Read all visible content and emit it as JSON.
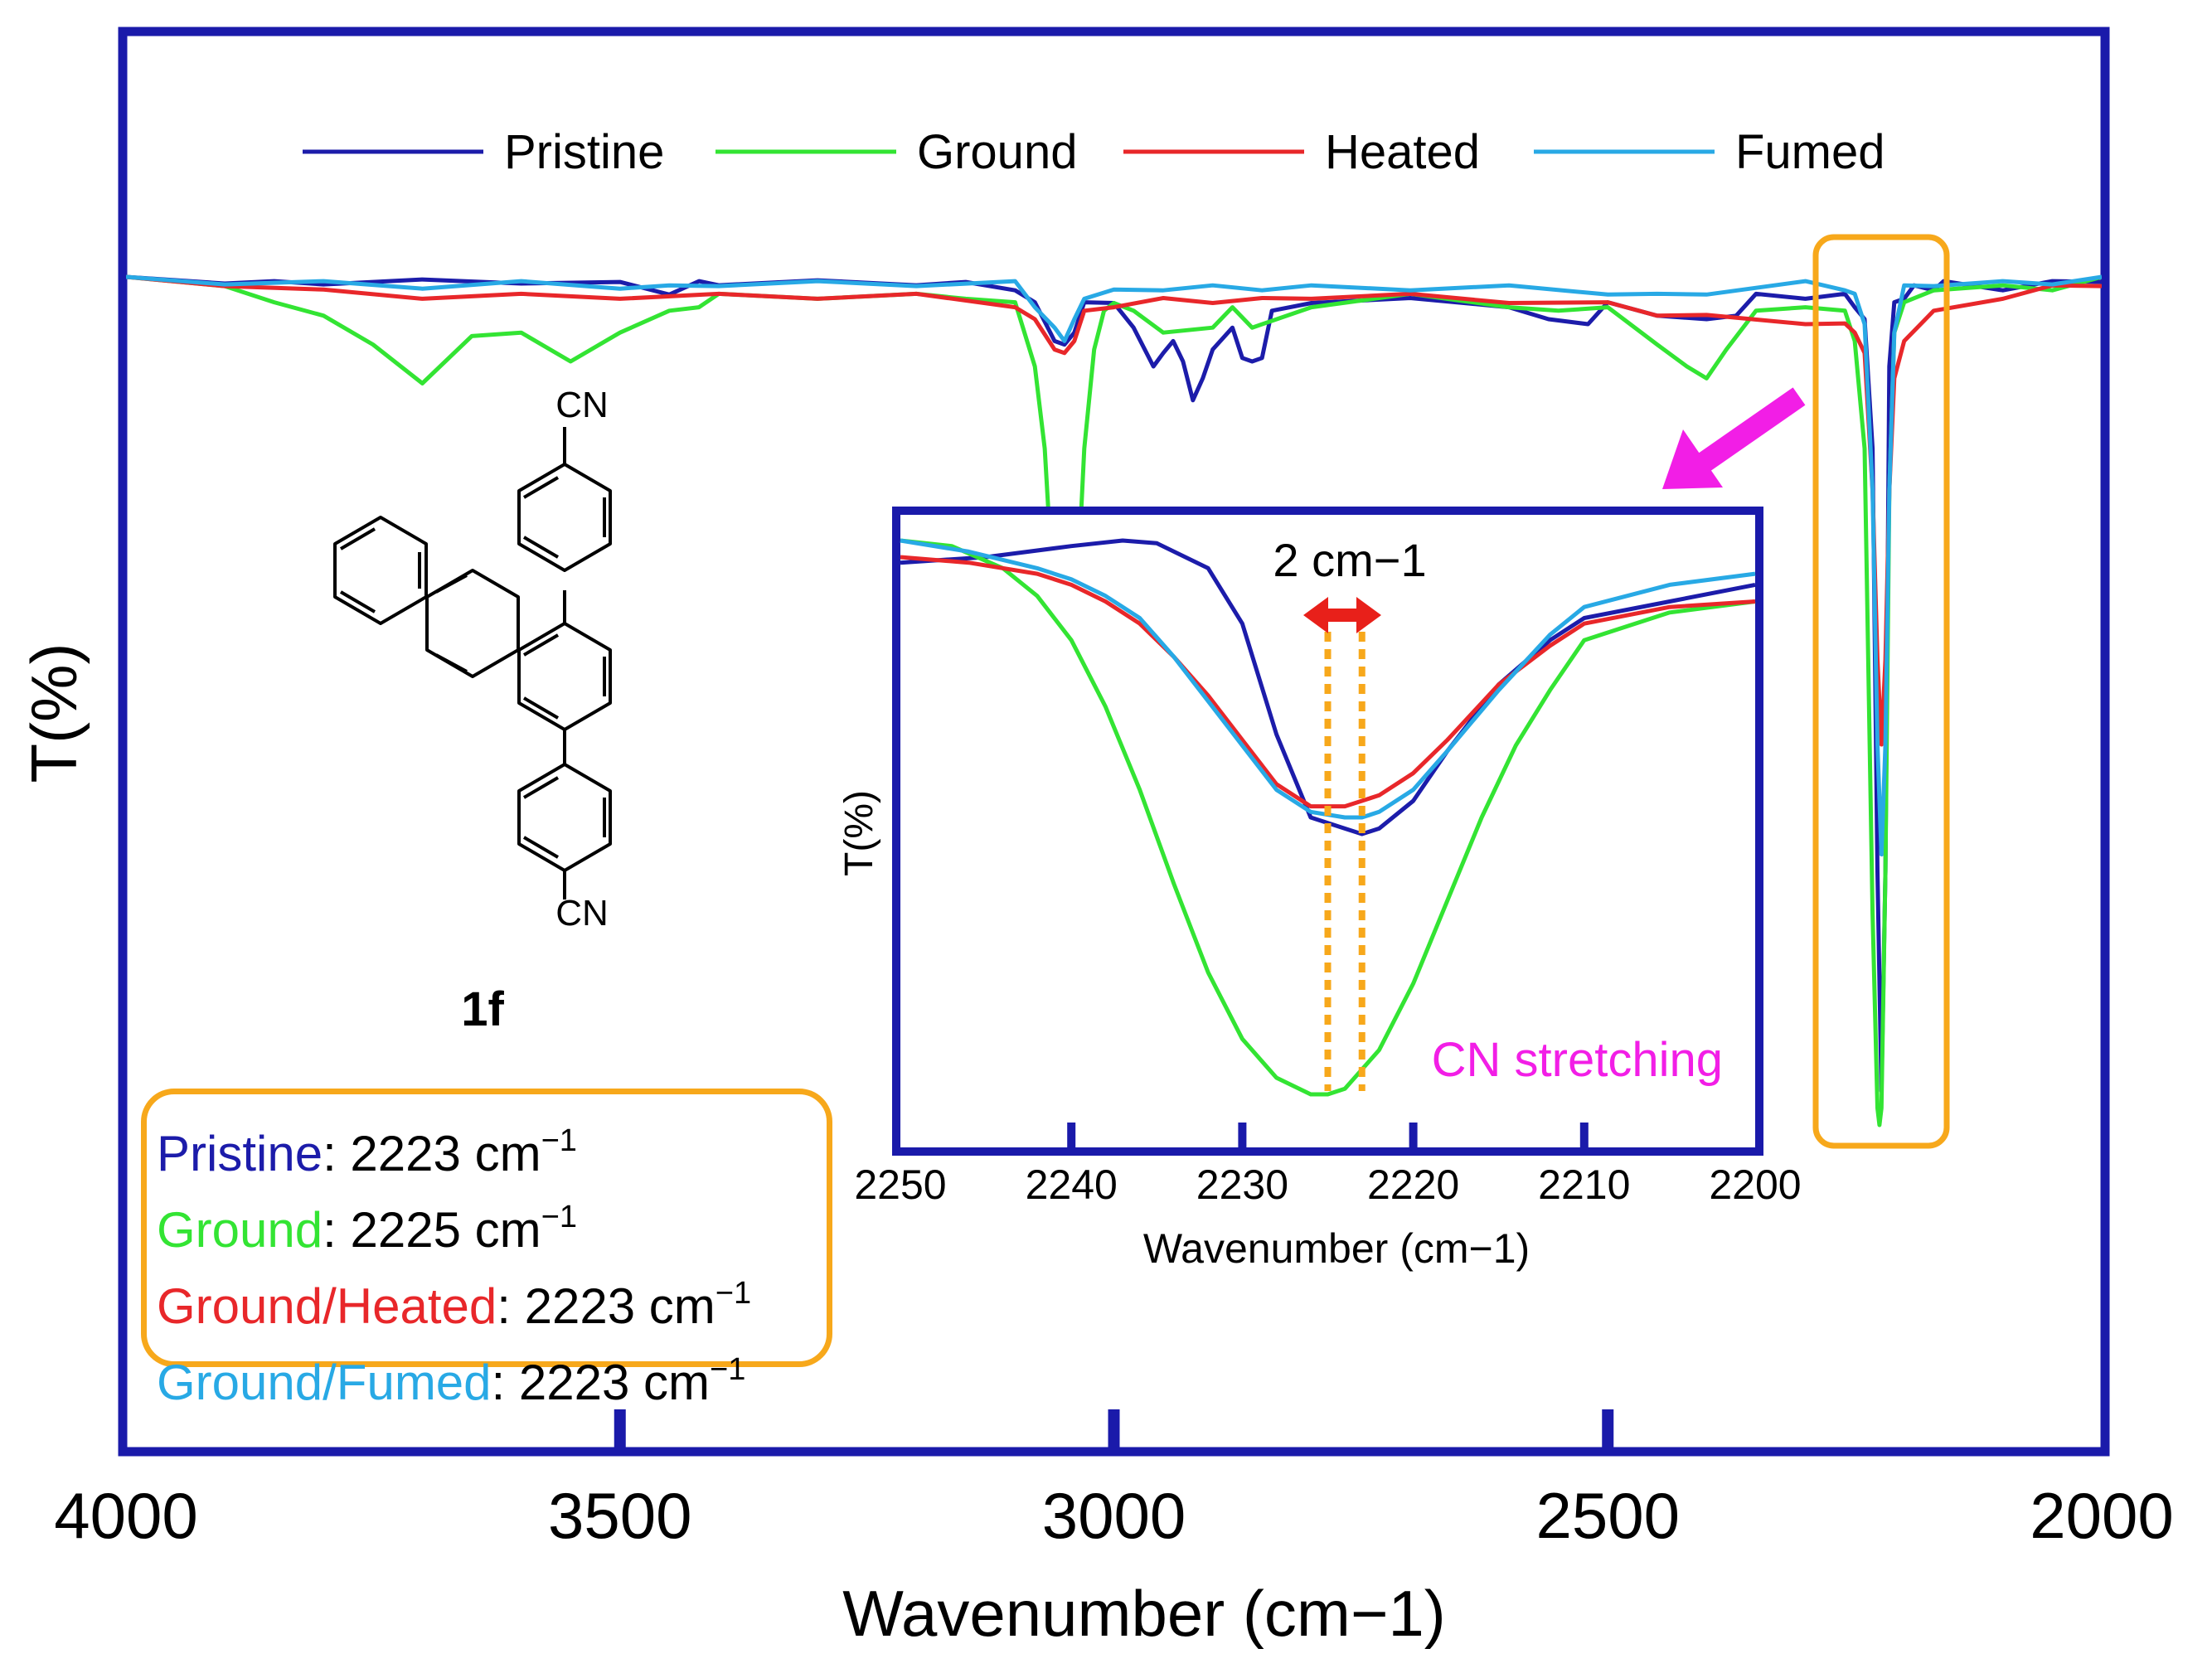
{
  "chart_data": [
    {
      "id": "main",
      "type": "line",
      "title": "",
      "xlabel": "Wavenumber (cm−1)",
      "ylabel": "T(%)",
      "xlim": [
        4000,
        2000
      ],
      "x_ticks": [
        "4000",
        "3500",
        "3000",
        "2500",
        "2000"
      ],
      "y_ticks_shown": false,
      "legend_position": "top",
      "series": [
        {
          "name": "Pristine",
          "color": "#1c1caa",
          "x": [
            4000,
            3900,
            3850,
            3800,
            3700,
            3600,
            3500,
            3450,
            3420,
            3400,
            3300,
            3200,
            3150,
            3100,
            3080,
            3060,
            3050,
            3040,
            3030,
            3000,
            2980,
            2960,
            2950,
            2940,
            2930,
            2920,
            2910,
            2900,
            2880,
            2870,
            2860,
            2850,
            2840,
            2800,
            2700,
            2600,
            2560,
            2520,
            2500,
            2450,
            2400,
            2370,
            2350,
            2300,
            2260,
            2250,
            2240,
            2232,
            2227,
            2223,
            2219,
            2215,
            2210,
            2200,
            2190,
            2170,
            2160,
            2100,
            2050,
            2000
          ],
          "values": [
            0,
            0.2,
            0.5,
            0.3,
            0.3,
            0.2,
            0.6,
            1.5,
            0.5,
            0.4,
            0.4,
            0.4,
            0.6,
            1.0,
            3,
            7,
            8,
            6,
            3,
            2.5,
            6,
            10,
            9,
            7,
            10,
            14,
            12,
            8,
            6,
            9,
            10,
            9,
            4,
            2.5,
            2.5,
            3,
            5,
            5,
            3,
            4,
            5,
            4,
            2,
            2,
            2,
            3,
            5,
            20,
            70,
            96,
            70,
            10,
            3,
            2,
            1,
            1,
            0.5,
            1,
            0.5,
            0
          ]
        },
        {
          "name": "Ground",
          "color": "#33e433",
          "x": [
            4000,
            3900,
            3850,
            3800,
            3750,
            3700,
            3650,
            3600,
            3550,
            3500,
            3450,
            3420,
            3400,
            3300,
            3200,
            3150,
            3100,
            3080,
            3070,
            3060,
            3050,
            3040,
            3030,
            3020,
            3010,
            3000,
            2980,
            2950,
            2900,
            2880,
            2860,
            2800,
            2700,
            2600,
            2550,
            2500,
            2450,
            2420,
            2400,
            2380,
            2350,
            2300,
            2260,
            2250,
            2240,
            2232,
            2227,
            2225,
            2223,
            2219,
            2215,
            2210,
            2200,
            2170,
            2100,
            2050,
            2000
          ],
          "values": [
            0,
            0.5,
            3,
            4,
            8,
            12,
            7,
            6,
            10,
            6,
            4,
            3,
            2,
            2,
            2,
            2,
            3,
            10,
            20,
            40,
            52,
            44,
            20,
            8,
            4,
            2.5,
            4,
            6,
            6,
            3,
            6,
            3,
            2,
            3,
            4,
            3,
            8,
            10,
            12,
            8,
            4,
            3,
            4,
            7,
            20,
            75,
            98,
            100,
            98,
            70,
            25,
            6,
            3,
            1,
            1,
            1,
            0
          ]
        },
        {
          "name": "Heated",
          "color": "#e8272a",
          "x": [
            4000,
            3900,
            3800,
            3700,
            3600,
            3500,
            3400,
            3300,
            3200,
            3100,
            3080,
            3060,
            3050,
            3040,
            3030,
            3000,
            2950,
            2900,
            2850,
            2800,
            2700,
            2600,
            2500,
            2450,
            2400,
            2300,
            2260,
            2250,
            2240,
            2232,
            2227,
            2223,
            2219,
            2215,
            2210,
            2200,
            2170,
            2100,
            2050,
            2000
          ],
          "values": [
            0,
            0.5,
            1.5,
            2,
            2,
            2,
            2,
            2,
            2,
            3,
            5,
            8,
            9,
            7,
            4,
            3,
            2.5,
            2.5,
            2.5,
            2,
            2,
            2.5,
            3,
            4,
            4.5,
            5,
            5.5,
            6,
            9,
            25,
            45,
            55,
            45,
            25,
            12,
            7,
            4,
            2,
            1,
            0.5
          ]
        },
        {
          "name": "Fumed",
          "color": "#28a9e5",
          "x": [
            4000,
            3900,
            3800,
            3700,
            3600,
            3500,
            3450,
            3400,
            3300,
            3200,
            3100,
            3080,
            3060,
            3050,
            3040,
            3030,
            3000,
            2950,
            2900,
            2850,
            2800,
            2700,
            2600,
            2500,
            2450,
            2400,
            2300,
            2260,
            2250,
            2240,
            2232,
            2227,
            2223,
            2219,
            2215,
            2210,
            2200,
            2170,
            2100,
            2050,
            2000
          ],
          "values": [
            0,
            0.3,
            0.5,
            0.8,
            0.5,
            0.8,
            1,
            0.5,
            0.5,
            0.5,
            0.5,
            3,
            6,
            7,
            5,
            2,
            1.5,
            1,
            1,
            1,
            1,
            1,
            1,
            1.5,
            2,
            1.5,
            0.5,
            1,
            2,
            5,
            25,
            55,
            68,
            55,
            25,
            6,
            1,
            0.5,
            0.5,
            0.3,
            0
          ]
        }
      ]
    },
    {
      "id": "inset",
      "type": "line",
      "title": "",
      "xlabel": "Wavenumber (cm−1)",
      "ylabel": "T(%)",
      "xlim": [
        2250,
        2200
      ],
      "x_ticks": [
        "2250",
        "2240",
        "2230",
        "2220",
        "2210",
        "2200"
      ],
      "annotations": {
        "shift_label": "2 cm−1",
        "band_label": "CN stretching",
        "dotted_lines_at": [
          2225,
          2223
        ]
      },
      "series": [
        {
          "name": "Pristine",
          "color": "#1c1caa",
          "x": [
            2250,
            2245,
            2240,
            2237,
            2235,
            2232,
            2230,
            2228,
            2226,
            2224,
            2223,
            2222,
            2220,
            2218,
            2215,
            2212,
            2210,
            2205,
            2200
          ],
          "values": [
            4,
            3,
            1,
            0,
            0.5,
            5,
            15,
            35,
            50,
            52,
            53,
            52,
            47,
            38,
            26,
            18,
            14,
            11,
            8
          ]
        },
        {
          "name": "Ground",
          "color": "#33e433",
          "x": [
            2250,
            2247,
            2244,
            2242,
            2240,
            2238,
            2236,
            2234,
            2232,
            2230,
            2228,
            2226,
            2225,
            2224,
            2222,
            2220,
            2218,
            2216,
            2214,
            2212,
            2210,
            2205,
            2200
          ],
          "values": [
            0,
            1,
            5,
            10,
            18,
            30,
            45,
            62,
            78,
            90,
            97,
            100,
            100,
            99,
            92,
            80,
            65,
            50,
            37,
            27,
            18,
            13,
            11
          ]
        },
        {
          "name": "Heated",
          "color": "#e8272a",
          "x": [
            2250,
            2246,
            2242,
            2240,
            2238,
            2236,
            2234,
            2232,
            2230,
            2228,
            2226,
            2224,
            2223,
            2222,
            2220,
            2218,
            2215,
            2212,
            2210,
            2205,
            2200
          ],
          "values": [
            3,
            4,
            6,
            8,
            11,
            15,
            21,
            28,
            36,
            44,
            48,
            48,
            47,
            46,
            42,
            36,
            26,
            19,
            15,
            12,
            11
          ]
        },
        {
          "name": "Fumed",
          "color": "#28a9e5",
          "x": [
            2250,
            2246,
            2242,
            2240,
            2238,
            2236,
            2234,
            2232,
            2230,
            2228,
            2226,
            2224,
            2223,
            2222,
            2220,
            2218,
            2215,
            2212,
            2210,
            2205,
            2200
          ],
          "values": [
            0,
            2,
            5,
            7,
            10,
            14,
            21,
            29,
            37,
            45,
            49,
            50,
            50,
            49,
            45,
            38,
            27,
            17,
            12,
            8,
            6
          ]
        }
      ]
    }
  ],
  "structure_label": "1f",
  "cn_label": "CN",
  "peak_box": {
    "lines": [
      {
        "name": "Pristine",
        "color": "#1c1caa",
        "value": "2223 cm",
        "exp": "−1"
      },
      {
        "name": "Ground",
        "color": "#33e433",
        "value": "2225 cm",
        "exp": "−1"
      },
      {
        "name": "Ground/Heated",
        "color": "#e8272a",
        "value": "2223 cm",
        "exp": "−1"
      },
      {
        "name": "Ground/Fumed",
        "color": "#28a9e5",
        "value": "2223 cm",
        "exp": "−1"
      }
    ]
  },
  "colors": {
    "frame": "#1a1aaa",
    "highlight": "#f7a81b",
    "arrow_magenta": "#f21ee6",
    "arrow_red": "#e8201a"
  }
}
